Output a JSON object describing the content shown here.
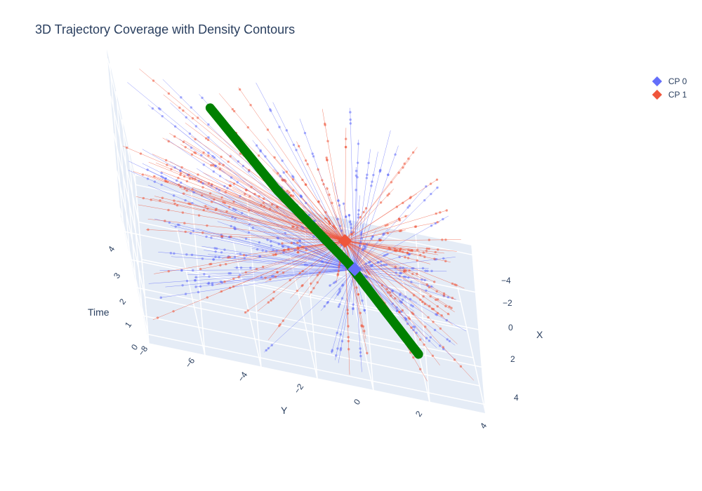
{
  "chart_data": {
    "type": "scatter3d",
    "title": "3D Trajectory Coverage with Density Contours",
    "axes": {
      "x": {
        "label": "X",
        "ticks": [
          "−4",
          "−2",
          "0",
          "2",
          "4"
        ],
        "range": [
          -4.5,
          4.5
        ]
      },
      "y": {
        "label": "Y",
        "ticks": [
          "−8",
          "−6",
          "−4",
          "−2",
          "0",
          "2",
          "4"
        ],
        "range": [
          -8,
          4
        ]
      },
      "z": {
        "label": "Time",
        "ticks": [
          "0",
          "1",
          "2",
          "3",
          "4"
        ],
        "range": [
          0,
          4.5
        ]
      }
    },
    "legend_position": "top-right",
    "series": [
      {
        "name": "CP 0",
        "color": "#636efa",
        "marker": "diamond",
        "control_point": [
          0.3,
          -0.1,
          1.5
        ]
      },
      {
        "name": "CP 1",
        "color": "#ef553b",
        "marker": "diamond",
        "control_point": [
          -0.4,
          -0.3,
          2.0
        ]
      }
    ],
    "curve": {
      "color": "#008000",
      "note_points": [
        [
          -3.2,
          -4.5,
          4.0
        ],
        [
          -1.5,
          -2.5,
          2.6
        ],
        [
          0.2,
          -0.3,
          1.6
        ],
        [
          2.6,
          1.8,
          0.4
        ]
      ]
    }
  }
}
